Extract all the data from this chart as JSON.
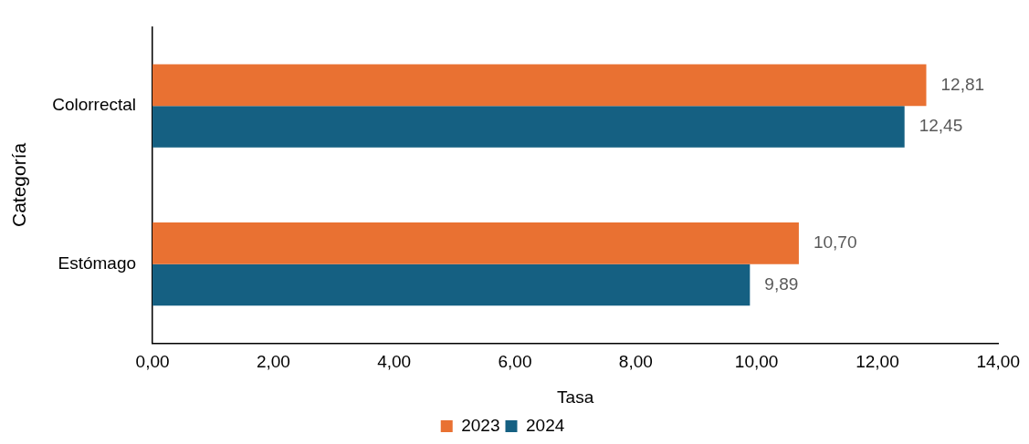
{
  "chart_data": {
    "type": "bar",
    "orientation": "horizontal",
    "xlabel": "Tasa",
    "ylabel": "Categoría",
    "categories": [
      "Colorrectal",
      "Estómago"
    ],
    "series": [
      {
        "name": "2023",
        "color": "#e97132",
        "values": [
          12.81,
          10.7
        ],
        "value_labels": [
          "12,81",
          "10,70"
        ]
      },
      {
        "name": "2024",
        "color": "#156082",
        "values": [
          12.45,
          9.89
        ],
        "value_labels": [
          "12,45",
          "9,89"
        ]
      }
    ],
    "xlim": [
      0,
      14
    ],
    "xticks": [
      {
        "value": 0,
        "label": "0,00"
      },
      {
        "value": 2,
        "label": "2,00"
      },
      {
        "value": 4,
        "label": "4,00"
      },
      {
        "value": 6,
        "label": "6,00"
      },
      {
        "value": 8,
        "label": "8,00"
      },
      {
        "value": 10,
        "label": "10,00"
      },
      {
        "value": 12,
        "label": "12,00"
      },
      {
        "value": 14,
        "label": "14,00"
      }
    ],
    "grid": false,
    "legend": "bottom"
  }
}
